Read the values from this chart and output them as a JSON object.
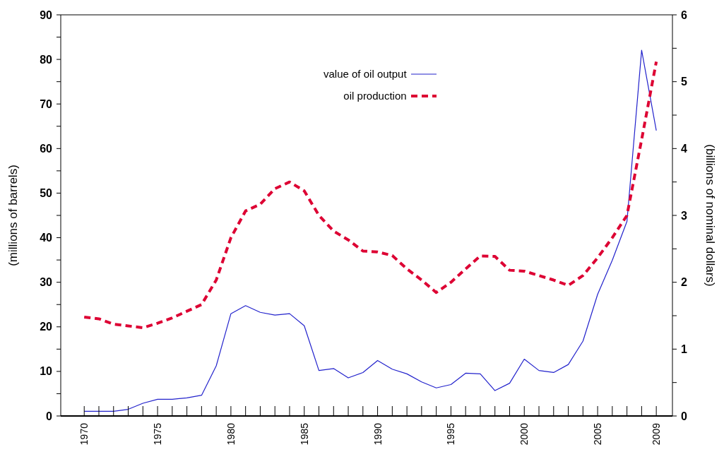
{
  "chart_data": {
    "type": "line",
    "ylabel": "(millions of barrels)",
    "y2label": "(billions of nominal dollars)",
    "legend": "top",
    "x": [
      1970,
      1971,
      1972,
      1973,
      1974,
      1975,
      1976,
      1977,
      1978,
      1979,
      1980,
      1981,
      1982,
      1983,
      1984,
      1985,
      1986,
      1987,
      1988,
      1989,
      1990,
      1991,
      1992,
      1993,
      1994,
      1995,
      1996,
      1997,
      1998,
      1999,
      2000,
      2001,
      2002,
      2003,
      2004,
      2005,
      2006,
      2007,
      2008,
      2009
    ],
    "series": [
      {
        "name": "value of oil output",
        "color": "#2222cc",
        "axis": "y2",
        "line_style": "solid",
        "values": [
          0.07,
          0.07,
          0.07,
          0.1,
          0.19,
          0.25,
          0.25,
          0.27,
          0.31,
          0.75,
          1.53,
          1.65,
          1.55,
          1.51,
          1.53,
          1.35,
          0.68,
          0.71,
          0.57,
          0.65,
          0.83,
          0.7,
          0.63,
          0.51,
          0.42,
          0.47,
          0.64,
          0.63,
          0.38,
          0.49,
          0.85,
          0.68,
          0.65,
          0.77,
          1.12,
          1.82,
          2.33,
          2.91,
          5.47,
          4.27
        ]
      },
      {
        "name": "oil production",
        "color": "#dd0033",
        "line_style": "dashed",
        "values": [
          22.2,
          21.8,
          20.6,
          20.2,
          19.8,
          20.8,
          22,
          23.5,
          25,
          30.5,
          40,
          46,
          47.5,
          51,
          52.5,
          50.5,
          45,
          41.5,
          39.5,
          37,
          36.8,
          36,
          33,
          30.5,
          27.7,
          30,
          33,
          35.9,
          35.8,
          32.7,
          32.5,
          31.5,
          30.5,
          29.3,
          31.5,
          35.5,
          40,
          45,
          62,
          79.5
        ]
      }
    ],
    "xlim": [
      1968.4,
      2010.1
    ],
    "xticks": [
      1970,
      {
        "value": 1971,
        "label": null
      },
      {
        "value": 1972,
        "label": null
      },
      {
        "value": 1973,
        "label": null
      },
      {
        "value": 1974,
        "label": null
      },
      1975,
      {
        "value": 1976,
        "label": null
      },
      {
        "value": 1977,
        "label": null
      },
      {
        "value": 1978,
        "label": null
      },
      {
        "value": 1979,
        "label": null
      },
      1980,
      {
        "value": 1981,
        "label": null
      },
      {
        "value": 1982,
        "label": null
      },
      {
        "value": 1983,
        "label": null
      },
      {
        "value": 1984,
        "label": null
      },
      1985,
      {
        "value": 1986,
        "label": null
      },
      {
        "value": 1987,
        "label": null
      },
      {
        "value": 1988,
        "label": null
      },
      {
        "value": 1989,
        "label": null
      },
      1990,
      {
        "value": 1991,
        "label": null
      },
      {
        "value": 1992,
        "label": null
      },
      {
        "value": 1993,
        "label": null
      },
      {
        "value": 1994,
        "label": null
      },
      1995,
      {
        "value": 1996,
        "label": null
      },
      {
        "value": 1997,
        "label": null
      },
      {
        "value": 1998,
        "label": null
      },
      {
        "value": 1999,
        "label": null
      },
      2000,
      {
        "value": 2001,
        "label": null
      },
      {
        "value": 2002,
        "label": null
      },
      {
        "value": 2003,
        "label": null
      },
      {
        "value": 2004,
        "label": null
      },
      2005,
      {
        "value": 2006,
        "label": null
      },
      {
        "value": 2007,
        "label": null
      },
      {
        "value": 2008,
        "label": null
      },
      2009
    ],
    "ylim": [
      0,
      90
    ],
    "yticks": [
      0,
      {
        "value": 5,
        "label": null
      },
      10,
      {
        "value": 15,
        "label": null
      },
      20,
      {
        "value": 25,
        "label": null
      },
      30,
      {
        "value": 35,
        "label": null
      },
      40,
      {
        "value": 45,
        "label": null
      },
      50,
      {
        "value": 55,
        "label": null
      },
      60,
      {
        "value": 65,
        "label": null
      },
      70,
      {
        "value": 75,
        "label": null
      },
      80,
      {
        "value": 85,
        "label": null
      },
      90
    ],
    "y2lim": [
      0,
      6
    ],
    "y2ticks": [
      0,
      {
        "value": 0.5,
        "label": null
      },
      1,
      {
        "value": 1.5,
        "label": null
      },
      2,
      {
        "value": 2.5,
        "label": null
      },
      3,
      {
        "value": 3.5,
        "label": null
      },
      4,
      {
        "value": 4.5,
        "label": null
      },
      5,
      {
        "value": 5.5,
        "label": null
      },
      6
    ]
  }
}
